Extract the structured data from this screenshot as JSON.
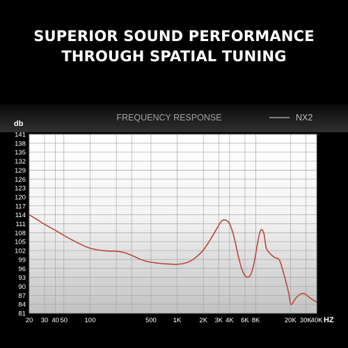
{
  "headline": {
    "line1": "SUPERIOR SOUND PERFORMANCE",
    "line2": "THROUGH SPATIAL TUNING"
  },
  "chart_data": {
    "type": "line",
    "title": "FREQUENCY RESPONSE",
    "xlabel": "HZ",
    "ylabel": "db",
    "x_scale": "log",
    "xlim": [
      20,
      40000
    ],
    "ylim": [
      81,
      141
    ],
    "grid": true,
    "legend_position": "top-right",
    "x_ticks": [
      {
        "value": 20,
        "label": "20"
      },
      {
        "value": 30,
        "label": "30"
      },
      {
        "value": 40,
        "label": "40"
      },
      {
        "value": 50,
        "label": "50"
      },
      {
        "value": 100,
        "label": "100"
      },
      {
        "value": 200,
        "label": ""
      },
      {
        "value": 300,
        "label": ""
      },
      {
        "value": 500,
        "label": "500"
      },
      {
        "value": 1000,
        "label": "1K"
      },
      {
        "value": 2000,
        "label": "2K"
      },
      {
        "value": 3000,
        "label": "3K"
      },
      {
        "value": 4000,
        "label": "4K"
      },
      {
        "value": 6000,
        "label": "6K"
      },
      {
        "value": 8000,
        "label": "8K"
      },
      {
        "value": 20000,
        "label": "20K"
      },
      {
        "value": 30000,
        "label": "30K"
      },
      {
        "value": 40000,
        "label": "40K"
      }
    ],
    "y_ticks": [
      "81",
      "84",
      "87",
      "90",
      "93",
      "96",
      "99",
      "102",
      "105",
      "108",
      "111",
      "114",
      "117",
      "120",
      "123",
      "126",
      "129",
      "132",
      "135",
      "138",
      "141"
    ],
    "series": [
      {
        "name": "NX2",
        "color": "#b8483e",
        "points": [
          [
            20,
            114
          ],
          [
            25,
            112.3
          ],
          [
            30,
            110.8
          ],
          [
            40,
            108.8
          ],
          [
            50,
            107.1
          ],
          [
            70,
            104.8
          ],
          [
            100,
            102.8
          ],
          [
            150,
            101.9
          ],
          [
            200,
            101.8
          ],
          [
            250,
            101.3
          ],
          [
            300,
            100.4
          ],
          [
            400,
            98.8
          ],
          [
            500,
            98.1
          ],
          [
            700,
            97.6
          ],
          [
            1000,
            97.4
          ],
          [
            1300,
            98.0
          ],
          [
            1600,
            99.5
          ],
          [
            2000,
            102.2
          ],
          [
            2500,
            106.5
          ],
          [
            3000,
            110.5
          ],
          [
            3300,
            112.1
          ],
          [
            3600,
            112.2
          ],
          [
            4000,
            111.0
          ],
          [
            4500,
            106.5
          ],
          [
            5000,
            100.5
          ],
          [
            5500,
            96.0
          ],
          [
            6000,
            93.6
          ],
          [
            6500,
            93.1
          ],
          [
            7000,
            94.0
          ],
          [
            7500,
            96.8
          ],
          [
            8000,
            101.0
          ],
          [
            8500,
            105.5
          ],
          [
            9000,
            108.5
          ],
          [
            9500,
            108.9
          ],
          [
            10000,
            107.2
          ],
          [
            10500,
            103.0
          ],
          [
            11500,
            101.2
          ],
          [
            13000,
            99.8
          ],
          [
            15000,
            98.7
          ],
          [
            17000,
            93.5
          ],
          [
            19000,
            88.0
          ],
          [
            20000,
            84.3
          ],
          [
            21000,
            84.2
          ],
          [
            23000,
            86.0
          ],
          [
            26000,
            87.4
          ],
          [
            29000,
            87.5
          ],
          [
            33000,
            86.3
          ],
          [
            37000,
            85.3
          ],
          [
            40000,
            84.7
          ]
        ]
      }
    ]
  }
}
